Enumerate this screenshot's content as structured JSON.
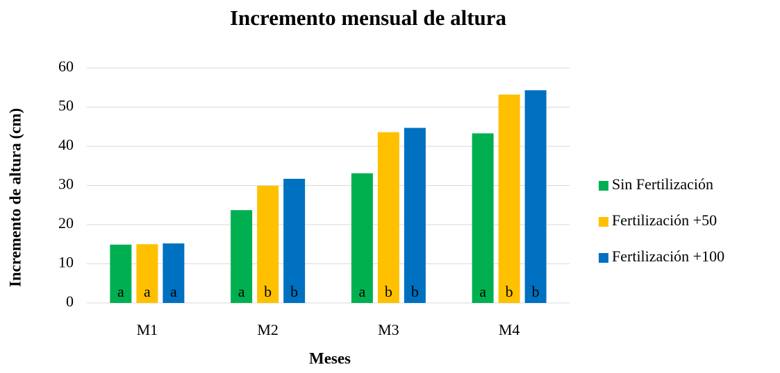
{
  "chart_data": {
    "type": "bar",
    "title": "Incremento mensual de altura",
    "x_label": "Meses",
    "y_label": "Incremento de altura (cm)",
    "categories": [
      "M1",
      "M2",
      "M3",
      "M4"
    ],
    "series": [
      {
        "name": "Sin Fertilización",
        "color": "#00b050",
        "values": [
          14.9,
          23.7,
          33.1,
          43.3
        ],
        "letters": [
          "a",
          "a",
          "a",
          "a"
        ]
      },
      {
        "name": "Fertilización +50",
        "color": "#ffc000",
        "values": [
          15.0,
          29.9,
          43.6,
          53.2
        ],
        "letters": [
          "a",
          "b",
          "b",
          "b"
        ]
      },
      {
        "name": "Fertilización +100",
        "color": "#0070c0",
        "values": [
          15.2,
          31.7,
          44.7,
          54.3
        ],
        "letters": [
          "a",
          "b",
          "b",
          "b"
        ]
      }
    ],
    "ylim": [
      0,
      60
    ],
    "yticks": [
      0,
      10,
      20,
      30,
      40,
      50,
      60
    ],
    "grid": true,
    "legend": "right"
  }
}
